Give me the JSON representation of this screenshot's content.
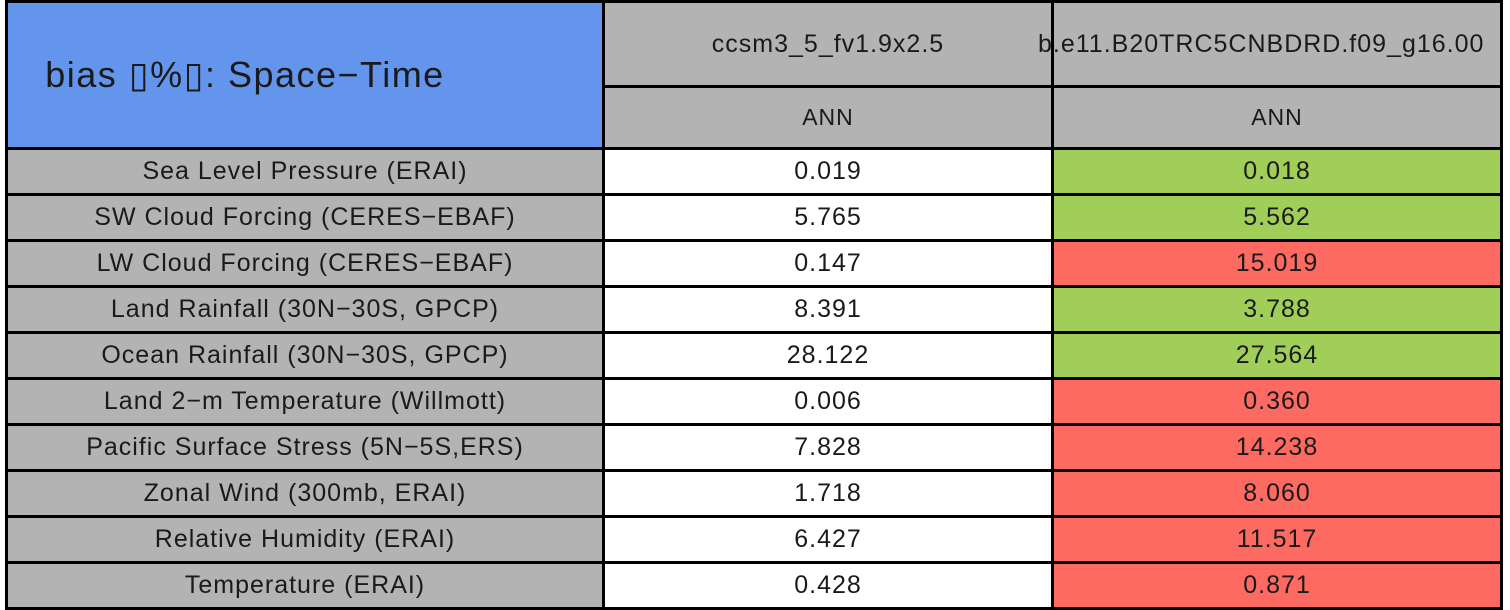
{
  "colors": {
    "title_bg": "#6495ed",
    "header_bg": "#b3b3b3",
    "label_bg": "#b3b3b3",
    "neutral_value_bg": "#ffffff",
    "better_bg": "#a1ce58",
    "worse_bg": "#fc6a62",
    "grid_line": "#000000",
    "text": "#1a1a1a"
  },
  "chart_data": {
    "type": "table",
    "title": "bias ▯%▯: Space−Time",
    "columns": [
      {
        "model": "ccsm3_5_fv1.9x2.5",
        "season": "ANN"
      },
      {
        "model": "b.e11.B20TRC5CNBDRD.f09_g16.00",
        "season": "ANN"
      }
    ],
    "legend_note_better_color": "#a1ce58",
    "legend_note_worse_color": "#fc6a62",
    "rows": [
      {
        "label": "Sea Level Pressure (ERAI)",
        "values": [
          "0.019",
          "0.018"
        ],
        "col2_status": "better",
        "col2_color": "#a1ce58"
      },
      {
        "label": "SW Cloud Forcing (CERES−EBAF)",
        "values": [
          "5.765",
          "5.562"
        ],
        "col2_status": "better",
        "col2_color": "#a1ce58"
      },
      {
        "label": "LW Cloud Forcing (CERES−EBAF)",
        "values": [
          "0.147",
          "15.019"
        ],
        "col2_status": "worse",
        "col2_color": "#fc6a62"
      },
      {
        "label": "Land Rainfall (30N−30S, GPCP)",
        "values": [
          "8.391",
          "3.788"
        ],
        "col2_status": "better",
        "col2_color": "#a1ce58"
      },
      {
        "label": "Ocean Rainfall (30N−30S, GPCP)",
        "values": [
          "28.122",
          "27.564"
        ],
        "col2_status": "better",
        "col2_color": "#a1ce58"
      },
      {
        "label": "Land 2−m Temperature (Willmott)",
        "values": [
          "0.006",
          "0.360"
        ],
        "col2_status": "worse",
        "col2_color": "#fc6a62"
      },
      {
        "label": "Pacific Surface Stress (5N−5S,ERS)",
        "values": [
          "7.828",
          "14.238"
        ],
        "col2_status": "worse",
        "col2_color": "#fc6a62"
      },
      {
        "label": "Zonal Wind (300mb, ERAI)",
        "values": [
          "1.718",
          "8.060"
        ],
        "col2_status": "worse",
        "col2_color": "#fc6a62"
      },
      {
        "label": "Relative Humidity (ERAI)",
        "values": [
          "6.427",
          "11.517"
        ],
        "col2_status": "worse",
        "col2_color": "#fc6a62"
      },
      {
        "label": "Temperature (ERAI)",
        "values": [
          "0.428",
          "0.871"
        ],
        "col2_status": "worse",
        "col2_color": "#fc6a62"
      }
    ]
  }
}
